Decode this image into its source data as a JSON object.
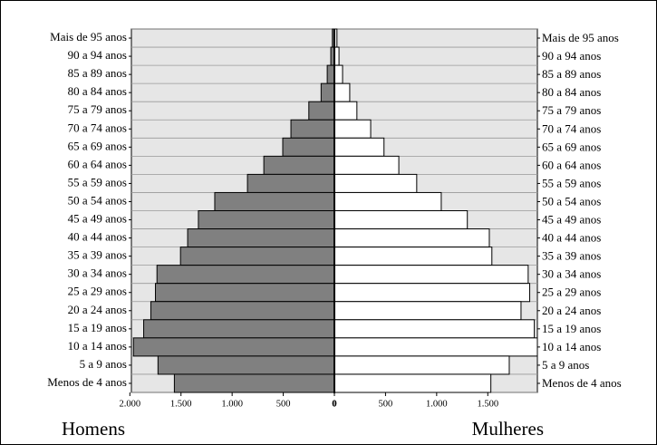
{
  "chart_data": {
    "type": "population-pyramid",
    "categories": [
      "Mais de 95 anos",
      "90 a 94 anos",
      "85 a 89 anos",
      "80 a 84 anos",
      "75 a 79 anos",
      "70 a 74 anos",
      "65 a 69 anos",
      "60 a 64 anos",
      "55 a 59 anos",
      "50 a 54 anos",
      "45 a 49 anos",
      "40 a 44 anos",
      "35 a 39 anos",
      "30 a 34 anos",
      "25 a 29 anos",
      "20 a 24 anos",
      "15 a 19 anos",
      "10 a 14 anos",
      "5 a 9 anos",
      "Menos de 4 anos"
    ],
    "series": [
      {
        "name": "Homens",
        "color": "#808080",
        "side": "left",
        "values": [
          20,
          35,
          70,
          130,
          250,
          425,
          505,
          690,
          850,
          1170,
          1330,
          1435,
          1505,
          1735,
          1750,
          1795,
          1865,
          1965,
          1725,
          1565
        ]
      },
      {
        "name": "Mulheres",
        "color": "#ffffff",
        "side": "right",
        "values": [
          25,
          45,
          80,
          150,
          220,
          355,
          485,
          630,
          805,
          1045,
          1300,
          1515,
          1540,
          1895,
          1910,
          1825,
          1955,
          1985,
          1710,
          1530
        ]
      }
    ],
    "xlim": [
      0,
      1985
    ],
    "left_xticks": [
      {
        "value": 2000,
        "label": "2.000"
      },
      {
        "value": 1500,
        "label": "1.500"
      },
      {
        "value": 1000,
        "label": "1.000"
      },
      500,
      0
    ],
    "right_xticks": [
      0,
      500,
      {
        "value": 1000,
        "label": "1.000"
      },
      {
        "value": 1500,
        "label": "1.500"
      }
    ],
    "background": "#e6e6e6"
  }
}
